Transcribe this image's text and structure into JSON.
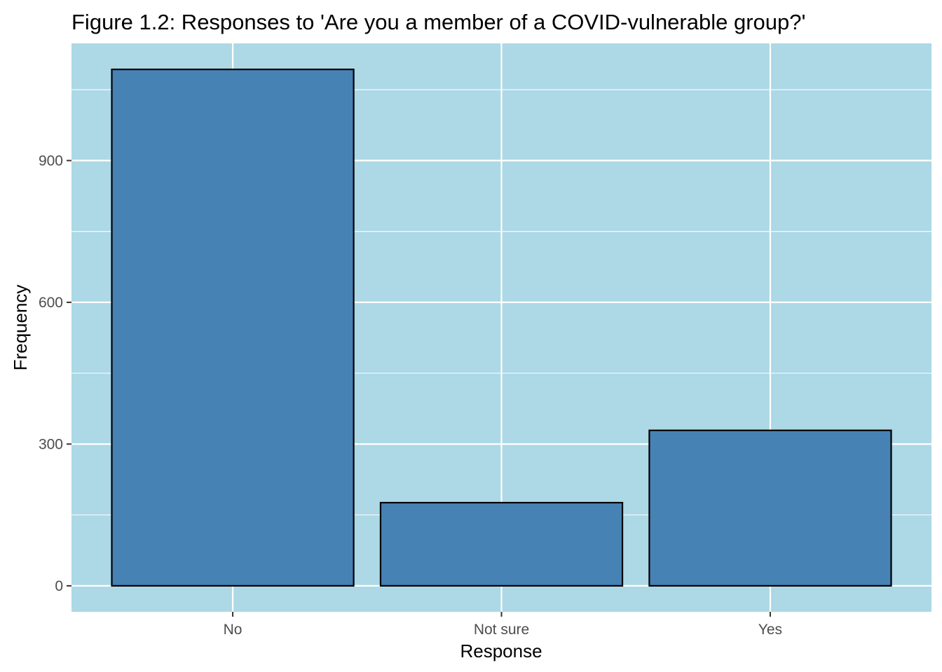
{
  "chart_data": {
    "type": "bar",
    "title": "Figure 1.2: Responses to 'Are you a member of a COVID-vulnerable group?'",
    "xlabel": "Response",
    "ylabel": "Frequency",
    "categories": [
      "No",
      "Not sure",
      "Yes"
    ],
    "values": [
      1093,
      176,
      329
    ],
    "ylim": [
      -55,
      1148
    ],
    "y_ticks": [
      0,
      300,
      600,
      900
    ],
    "y_tick_labels": [
      "0",
      "300",
      "600",
      "900"
    ],
    "y_minor_ticks": [
      150,
      450,
      750,
      1050
    ],
    "grid": true,
    "legend": "none",
    "colors": {
      "bar_fill": "#4682b4",
      "bar_outline": "#000000",
      "panel_background": "#add8e6",
      "grid": "#ffffff",
      "tick_text": "#4d4d4d",
      "axis_ticks": "#333333"
    }
  }
}
